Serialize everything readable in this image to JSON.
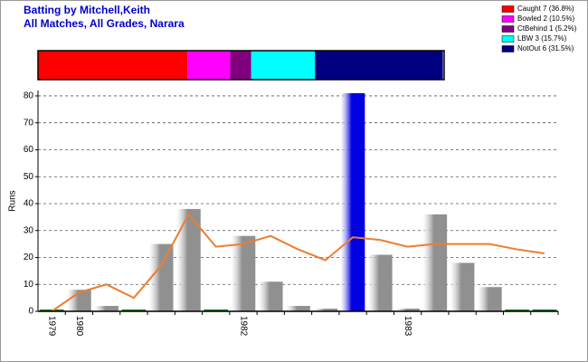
{
  "chart_data": [
    {
      "type": "stacked-bar",
      "xlim": [
        0,
        100
      ],
      "legend": "top-right",
      "series": [
        {
          "name": "Caught 7 (36.8%)",
          "color": "#ff0000",
          "values": [
            36.8
          ]
        },
        {
          "name": "Bowled 2 (10.5%)",
          "color": "#ff00ff",
          "values": [
            10.5
          ]
        },
        {
          "name": "CtBehind 1 (5.2%)",
          "color": "#800080",
          "values": [
            5.2
          ]
        },
        {
          "name": "LBW 3 (15.7%)",
          "color": "#00ffff",
          "values": [
            15.7
          ]
        },
        {
          "name": "NotOut 6 (31.5%)",
          "color": "#000080",
          "values": [
            31.5
          ]
        }
      ]
    },
    {
      "type": "bar",
      "title": "Batting by Mitchell,Keith",
      "subtitle": "All Matches, All Grades, Narara",
      "y_label": "Runs",
      "categories": [
        "1979",
        "1980",
        null,
        null,
        null,
        null,
        null,
        "1982",
        null,
        null,
        null,
        null,
        null,
        "1983",
        null,
        null,
        null,
        null,
        null
      ],
      "series": [
        {
          "type": "bar",
          "colors": [
            "#008000",
            "#909090",
            "#909090",
            "#008000",
            "#909090",
            "#909090",
            "#008000",
            "#909090",
            "#909090",
            "#909090",
            "#909090",
            "#0000e0",
            "#909090",
            "#909090",
            "#909090",
            "#909090",
            "#909090",
            "#008000",
            "#008000"
          ],
          "values": [
            0,
            8,
            2,
            0,
            25,
            38,
            0,
            28,
            11,
            2,
            1,
            81,
            21,
            1,
            36,
            18,
            9,
            0,
            0
          ]
        },
        {
          "type": "line",
          "color": "#ed7d31",
          "values": [
            0,
            7,
            10,
            5,
            17,
            36,
            24,
            25,
            28,
            23,
            19,
            27.5,
            26.5,
            24,
            25,
            25,
            25,
            23,
            21.5
          ]
        }
      ],
      "ylim": [
        0,
        82
      ],
      "yticks": [
        0,
        10,
        20,
        30,
        40,
        50,
        60,
        70,
        80
      ],
      "grid": true
    }
  ]
}
